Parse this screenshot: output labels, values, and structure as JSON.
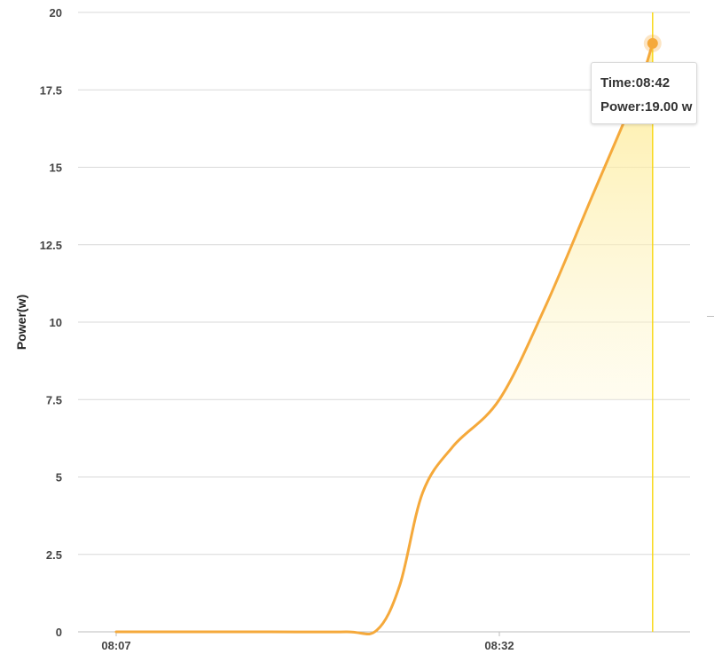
{
  "chart_data": {
    "type": "area",
    "ylabel": "Power(w)",
    "ylim": [
      0,
      20
    ],
    "y_ticks": [
      "0",
      "2.5",
      "5",
      "7.5",
      "10",
      "12.5",
      "15",
      "17.5",
      "20"
    ],
    "x_ticks": [
      "08:07",
      "08:32"
    ],
    "x_tick_minutes": [
      0,
      25
    ],
    "grid": "horizontal",
    "series": [
      {
        "points": [
          {
            "t": 0,
            "y": 0
          },
          {
            "t": 5,
            "y": 0
          },
          {
            "t": 10,
            "y": 0
          },
          {
            "t": 15,
            "y": 0
          },
          {
            "t": 17,
            "y": 0.05
          },
          {
            "t": 18.5,
            "y": 1.5
          },
          {
            "t": 20,
            "y": 4.5
          },
          {
            "t": 22,
            "y": 6.0
          },
          {
            "t": 25,
            "y": 7.5
          },
          {
            "t": 28,
            "y": 10.5
          },
          {
            "t": 31,
            "y": 14.0
          },
          {
            "t": 34,
            "y": 17.5
          },
          {
            "t": 35,
            "y": 19.0
          }
        ]
      }
    ],
    "highlight": {
      "t": 35,
      "y": 19.0,
      "time": "08:42",
      "value": 19.0
    }
  },
  "tooltip": {
    "time_line": "Time:08:42",
    "power_line": "Power:19.00 w"
  },
  "colors": {
    "line": "#f5a93b",
    "area_top": "#fde98c",
    "area_bottom": "#ffffff",
    "crosshair": "#f8d81a",
    "grid": "#d9d9d9"
  }
}
